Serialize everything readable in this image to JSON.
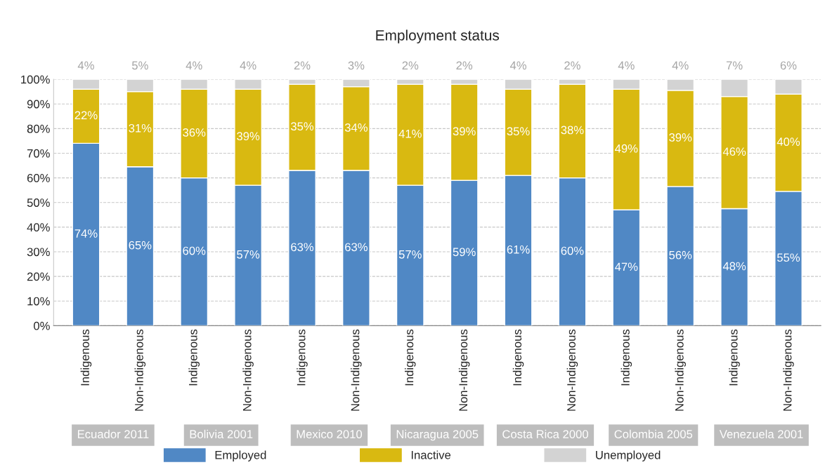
{
  "chart_data": {
    "type": "bar",
    "title": "Employment status",
    "stacked": true,
    "categories": [
      "Indigenous",
      "Non-Indigenous",
      "Indigenous",
      "Non-Indigenous",
      "Indigenous",
      "Non-Indigenous",
      "Indigenous",
      "Non-Indigenous",
      "Indigenous",
      "Non-Indigenous",
      "Indigenous",
      "Non-Indigenous",
      "Indigenous",
      "Non-Indigenous"
    ],
    "series": [
      {
        "name": "Employed",
        "color": "#5088c5",
        "values": [
          74,
          64.5,
          60,
          57,
          63,
          63,
          57,
          59,
          61,
          60,
          47,
          56.5,
          47.5,
          54.5
        ],
        "value_labels": [
          "74%",
          "65%",
          "60%",
          "57%",
          "63%",
          "63%",
          "57%",
          "59%",
          "61%",
          "60%",
          "47%",
          "56%",
          "48%",
          "55%"
        ]
      },
      {
        "name": "Inactive",
        "color": "#d9b911",
        "values": [
          22,
          30.5,
          36,
          39,
          35,
          34,
          41,
          39,
          35,
          38,
          49,
          39,
          45.5,
          39.5
        ],
        "value_labels": [
          "22%",
          "31%",
          "36%",
          "39%",
          "35%",
          "34%",
          "41%",
          "39%",
          "35%",
          "38%",
          "49%",
          "39%",
          "46%",
          "40%"
        ]
      },
      {
        "name": "Unemployed",
        "color": "#d3d3d3",
        "values": [
          4,
          5,
          4,
          4,
          2,
          3,
          2,
          2,
          4,
          2,
          4,
          4.5,
          7,
          6
        ],
        "value_labels": [
          "4%",
          "5%",
          "4%",
          "4%",
          "2%",
          "3%",
          "2%",
          "2%",
          "4%",
          "2%",
          "4%",
          "4%",
          "7%",
          "6%"
        ]
      }
    ],
    "annotations": [
      "Ecuador 2011",
      "Bolivia 2001",
      "Mexico 2010",
      "Nicaragua 2005",
      "Costa Rica 2000",
      "Colombia 2005",
      "Venezuela 2001"
    ],
    "ylim": [
      0,
      100
    ],
    "yticks": [
      {
        "value": 0,
        "label": "0%"
      },
      {
        "value": 10,
        "label": "10%"
      },
      {
        "value": 20,
        "label": "20%"
      },
      {
        "value": 30,
        "label": "30%"
      },
      {
        "value": 40,
        "label": "40%"
      },
      {
        "value": 50,
        "label": "50%"
      },
      {
        "value": 60,
        "label": "60%"
      },
      {
        "value": 70,
        "label": "70%"
      },
      {
        "value": 80,
        "label": "80%"
      },
      {
        "value": 90,
        "label": "90%"
      },
      {
        "value": 100,
        "label": "100%"
      }
    ],
    "grid": "y",
    "legend": "bottom"
  }
}
